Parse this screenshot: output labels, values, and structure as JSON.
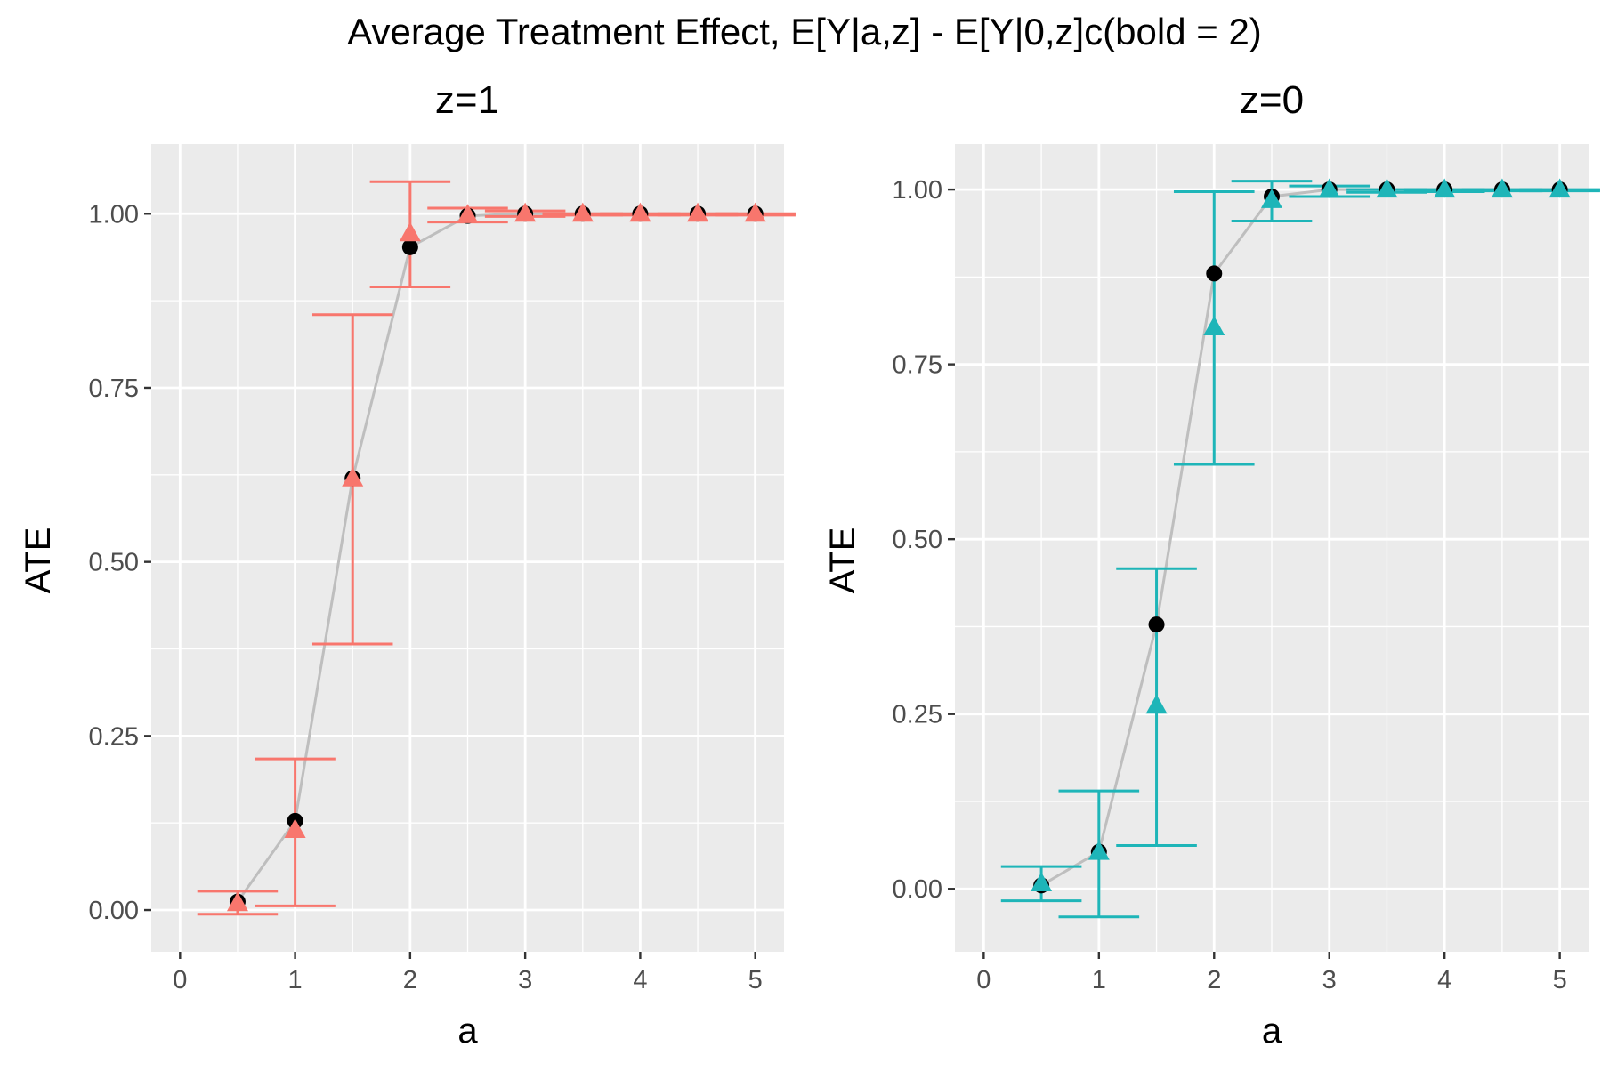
{
  "title": "Average Treatment Effect,  E[Y|a,z] - E[Y|0,z]c(bold = 2)",
  "chart_data": [
    {
      "type": "line",
      "panel_title": "z=1",
      "xlabel": "a",
      "ylabel": "ATE",
      "xlim": [
        -0.25,
        5.25
      ],
      "ylim": [
        -0.06,
        1.1
      ],
      "x_ticks": [
        0,
        1,
        2,
        3,
        4,
        5
      ],
      "y_ticks": [
        0.0,
        0.25,
        0.5,
        0.75,
        1.0
      ],
      "x_tick_labels": [
        "0",
        "1",
        "2",
        "3",
        "4",
        "5"
      ],
      "y_tick_labels": [
        "0.00",
        "0.25",
        "0.50",
        "0.75",
        "1.00"
      ],
      "grid": true,
      "accent_color": "#F8766D",
      "true_line_color": "#BEBEBE",
      "true_point_color": "#000000",
      "series": [
        {
          "role": "true",
          "marker": "circle",
          "x": [
            0.5,
            1,
            1.5,
            2,
            2.5,
            3,
            3.5,
            4,
            4.5,
            5
          ],
          "y": [
            0.012,
            0.128,
            0.62,
            0.952,
            0.997,
            1.0,
            1.0,
            1.0,
            1.0,
            1.0
          ]
        },
        {
          "role": "estimate",
          "marker": "triangle",
          "x": [
            0.5,
            1,
            1.5,
            2,
            2.5,
            3,
            3.5,
            4,
            4.5,
            5
          ],
          "y": [
            0.01,
            0.115,
            0.62,
            0.972,
            0.998,
            1.0,
            1.0,
            1.0,
            1.0,
            1.0
          ],
          "lower": [
            -0.006,
            0.006,
            0.382,
            0.895,
            0.988,
            0.996,
            0.998,
            0.998,
            0.998,
            0.998
          ],
          "upper": [
            0.027,
            0.217,
            0.855,
            1.046,
            1.008,
            1.004,
            1.0,
            1.0,
            1.0,
            1.0
          ]
        }
      ]
    },
    {
      "type": "line",
      "panel_title": "z=0",
      "xlabel": "a",
      "ylabel": "ATE",
      "xlim": [
        -0.25,
        5.25
      ],
      "ylim": [
        -0.09,
        1.065
      ],
      "x_ticks": [
        0,
        1,
        2,
        3,
        4,
        5
      ],
      "y_ticks": [
        0.0,
        0.25,
        0.5,
        0.75,
        1.0
      ],
      "x_tick_labels": [
        "0",
        "1",
        "2",
        "3",
        "4",
        "5"
      ],
      "y_tick_labels": [
        "0.00",
        "0.25",
        "0.50",
        "0.75",
        "1.00"
      ],
      "grid": true,
      "accent_color": "#1EB5B8",
      "true_line_color": "#BEBEBE",
      "true_point_color": "#000000",
      "series": [
        {
          "role": "true",
          "marker": "circle",
          "x": [
            0.5,
            1,
            1.5,
            2,
            2.5,
            3,
            3.5,
            4,
            4.5,
            5
          ],
          "y": [
            0.005,
            0.053,
            0.378,
            0.88,
            0.99,
            1.0,
            1.0,
            1.0,
            1.0,
            1.0
          ]
        },
        {
          "role": "estimate",
          "marker": "triangle",
          "x": [
            0.5,
            1,
            1.5,
            2,
            2.5,
            3,
            3.5,
            4,
            4.5,
            5
          ],
          "y": [
            0.008,
            0.053,
            0.262,
            0.803,
            0.985,
            1.0,
            1.0,
            1.0,
            1.0,
            1.0
          ],
          "lower": [
            -0.017,
            -0.04,
            0.062,
            0.607,
            0.955,
            0.99,
            0.996,
            0.997,
            0.998,
            0.998
          ],
          "upper": [
            0.032,
            0.14,
            0.458,
            0.997,
            1.012,
            1.005,
            1.0,
            1.0,
            1.0,
            1.0
          ]
        }
      ]
    }
  ]
}
